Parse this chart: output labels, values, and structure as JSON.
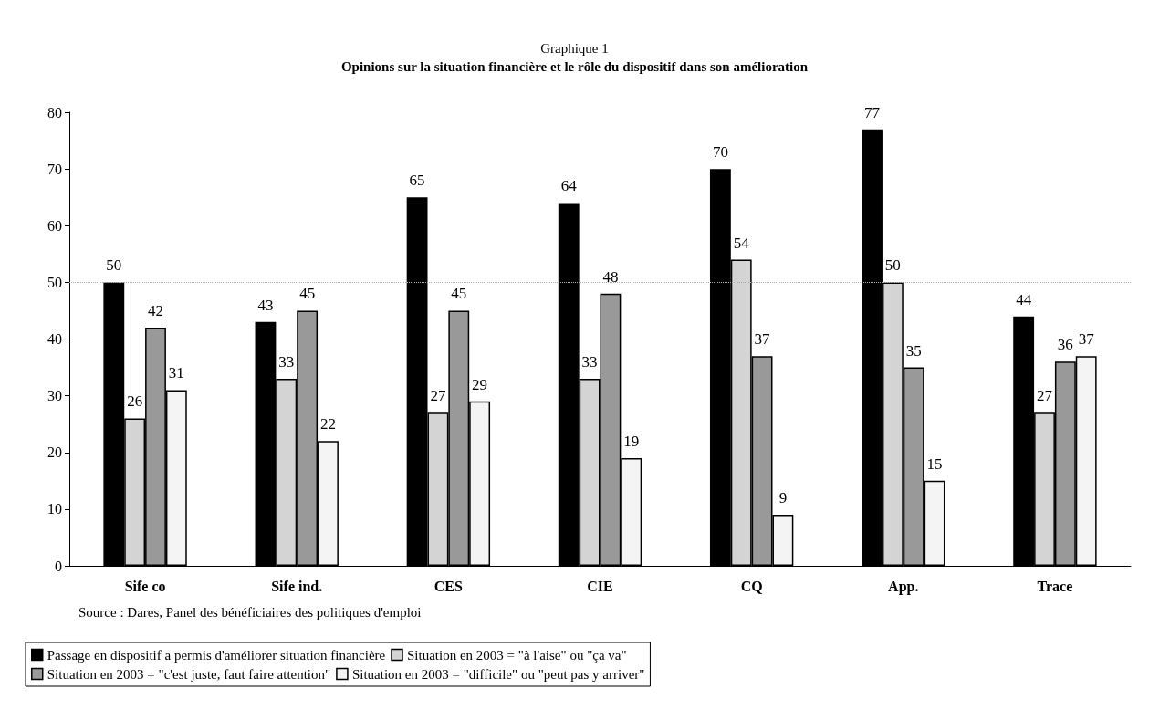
{
  "chart_data": {
    "type": "bar",
    "subtitle": "Graphique 1",
    "title": "Opinions sur la situation financière et le rôle du dispositif dans son amélioration",
    "categories": [
      "Sife co",
      "Sife ind.",
      "CES",
      "CIE",
      "CQ",
      "App.",
      "Trace"
    ],
    "series": [
      {
        "name": "Passage en dispositif a permis d'améliorer situation financière",
        "color": "#000000",
        "values": [
          50,
          43,
          65,
          64,
          70,
          77,
          44
        ]
      },
      {
        "name": "Situation en 2003 = \"à l'aise\" ou \"ça va\"",
        "color": "#d4d4d4",
        "values": [
          26,
          33,
          27,
          33,
          54,
          50,
          27
        ]
      },
      {
        "name": "Situation en 2003 = \"c'est juste, faut faire attention\"",
        "color": "#999999",
        "values": [
          42,
          45,
          45,
          48,
          37,
          35,
          36
        ]
      },
      {
        "name": "Situation en 2003 = \"difficile\" ou \"peut pas y arriver\"",
        "color": "#f4f4f4",
        "values": [
          31,
          22,
          29,
          19,
          9,
          15,
          37
        ]
      }
    ],
    "ylim": [
      0,
      80
    ],
    "yticks": [
      0,
      10,
      20,
      30,
      40,
      50,
      60,
      70,
      80
    ],
    "ref_lines": [
      {
        "axis": "y",
        "value": 50,
        "color": "#aaaaaa",
        "line_style": "dotted"
      }
    ],
    "data_labels": true,
    "grid": false,
    "legend": "bottom",
    "annotations": [
      "Source : Dares, Panel des bénéficiaires des politiques d'emploi"
    ]
  }
}
